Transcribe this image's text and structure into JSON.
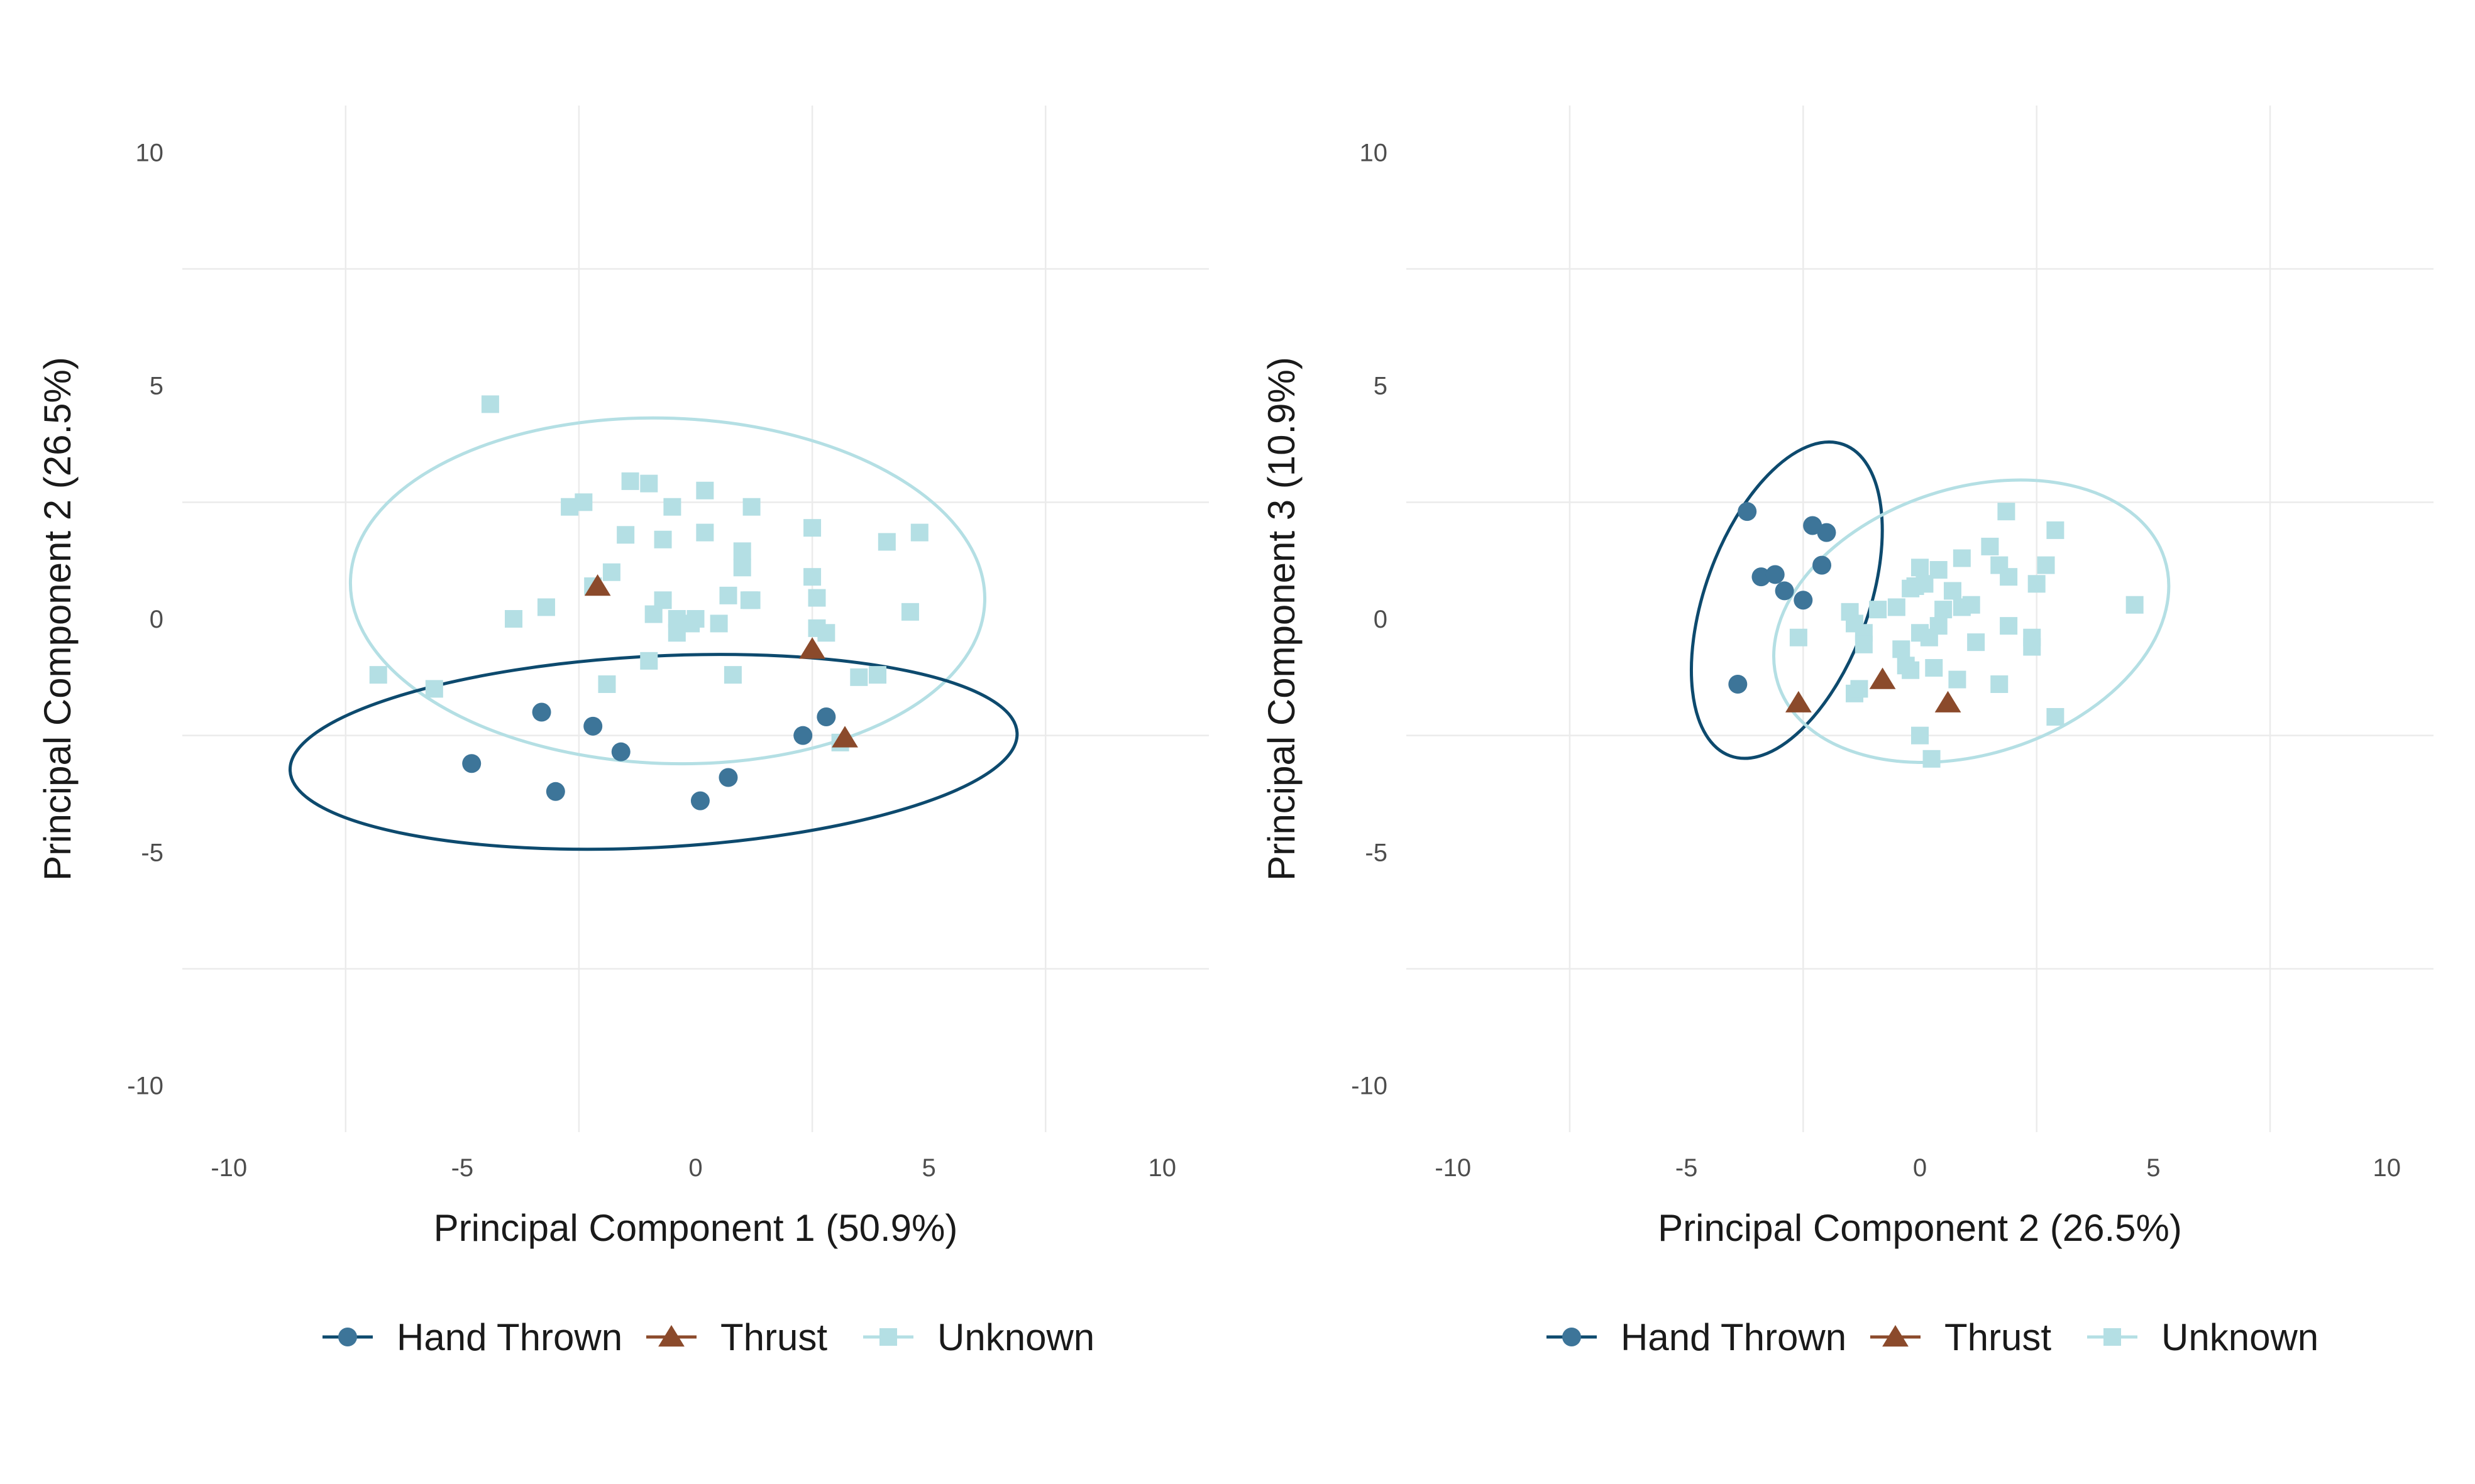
{
  "chart_data": [
    {
      "type": "scatter",
      "xlabel": "Principal Component 1 (50.9%)",
      "ylabel": "Principal Component 2 (26.5%)",
      "xlim": [
        -11,
        11
      ],
      "ylim": [
        -11,
        11
      ],
      "xticks": [
        -10,
        -5,
        0,
        5,
        10
      ],
      "yticks": [
        -10,
        -5,
        0,
        5,
        10
      ],
      "grid": true,
      "legend_position": "bottom",
      "series": [
        {
          "name": "Hand Thrown",
          "color": "#3d7599",
          "marker": "circle",
          "x": [
            -4.8,
            -3.3,
            -3.0,
            -2.2,
            -1.6,
            0.1,
            0.7,
            2.3,
            2.8
          ],
          "y": [
            -3.1,
            -2.0,
            -3.7,
            -2.3,
            -2.85,
            -3.9,
            -3.4,
            -2.5,
            -2.1
          ]
        },
        {
          "name": "Thrust",
          "color": "#8b4a2b",
          "marker": "triangle",
          "x": [
            -2.1,
            2.5,
            3.2
          ],
          "y": [
            0.7,
            -0.65,
            -2.55
          ]
        },
        {
          "name": "Unknown",
          "color": "#b4dfe4",
          "marker": "square",
          "x": [
            -4.4,
            -6.8,
            -5.6,
            -3.9,
            -3.2,
            -2.7,
            -2.4,
            -2.2,
            -1.8,
            -1.9,
            -1.5,
            -1.4,
            -1.0,
            -0.7,
            -0.9,
            -0.7,
            -0.5,
            -0.4,
            -0.4,
            0.0,
            -0.1,
            0.2,
            0.2,
            0.5,
            0.7,
            0.8,
            1.0,
            1.0,
            1.15,
            1.2,
            1.2,
            2.5,
            2.6,
            2.6,
            2.5,
            2.8,
            3.1,
            3.5,
            3.9,
            4.1,
            4.6,
            4.8,
            -1.0
          ],
          "y": [
            4.6,
            -1.2,
            -1.5,
            0.0,
            0.25,
            2.4,
            2.5,
            0.7,
            1.0,
            -1.4,
            1.8,
            2.95,
            2.9,
            1.7,
            0.1,
            0.4,
            2.4,
            -0.3,
            0.0,
            0.0,
            -0.1,
            2.75,
            1.85,
            -0.1,
            0.5,
            -1.2,
            1.1,
            1.45,
            0.4,
            0.4,
            2.4,
            0.9,
            0.45,
            -0.2,
            1.95,
            -0.3,
            -2.65,
            -1.25,
            -1.2,
            1.65,
            0.15,
            1.85,
            -0.9
          ]
        }
      ],
      "ellipses": [
        {
          "group": "Unknown",
          "color": "#b4dfe4",
          "cx": -0.6,
          "cy": 0.6,
          "rx": 6.8,
          "ry": 3.7,
          "angle_deg": -2
        },
        {
          "group": "Hand Thrown",
          "color": "#0d4a6e",
          "cx": -0.9,
          "cy": -2.85,
          "rx": 7.8,
          "ry": 2.05,
          "angle_deg": 3
        }
      ]
    },
    {
      "type": "scatter",
      "xlabel": "Principal Component 2 (26.5%)",
      "ylabel": "Principal Component 3 (10.9%)",
      "xlim": [
        -11,
        11
      ],
      "ylim": [
        -11,
        11
      ],
      "xticks": [
        -10,
        -5,
        0,
        5,
        10
      ],
      "yticks": [
        -10,
        -5,
        0,
        5,
        10
      ],
      "grid": true,
      "legend_position": "bottom",
      "series": [
        {
          "name": "Hand Thrown",
          "color": "#3d7599",
          "marker": "circle",
          "x": [
            -3.7,
            -3.4,
            -3.1,
            -2.9,
            -2.5,
            -2.3,
            -2.1,
            -2.0,
            -3.9
          ],
          "y": [
            2.3,
            0.9,
            0.95,
            0.6,
            0.4,
            2.0,
            1.15,
            1.85,
            -1.4
          ]
        },
        {
          "name": "Thrust",
          "color": "#8b4a2b",
          "marker": "triangle",
          "x": [
            -2.6,
            -0.8,
            0.6
          ],
          "y": [
            -1.8,
            -1.3,
            -1.8
          ]
        },
        {
          "name": "Unknown",
          "color": "#b4dfe4",
          "marker": "square",
          "x": [
            -2.6,
            -1.5,
            -1.4,
            -1.2,
            -1.2,
            -1.4,
            -1.3,
            -0.9,
            -0.5,
            -0.4,
            -0.3,
            -0.2,
            -0.1,
            0.0,
            0.0,
            0.1,
            0.2,
            0.3,
            0.4,
            0.4,
            0.5,
            0.7,
            0.9,
            0.9,
            1.1,
            1.2,
            1.5,
            1.7,
            1.7,
            1.9,
            1.85,
            1.9,
            2.4,
            2.4,
            2.5,
            2.7,
            2.9,
            2.9,
            4.6,
            0.0,
            0.25,
            -0.2,
            0.8
          ],
          "y": [
            -0.4,
            0.15,
            -0.1,
            -0.3,
            -0.55,
            -1.6,
            -1.5,
            0.2,
            0.25,
            -0.65,
            -1.0,
            0.65,
            0.7,
            1.1,
            -0.3,
            0.75,
            -0.4,
            -1.05,
            -0.15,
            1.05,
            0.2,
            0.6,
            0.25,
            1.3,
            0.3,
            -0.5,
            1.55,
            -1.4,
            1.15,
            0.9,
            2.3,
            -0.15,
            -0.4,
            -0.6,
            0.75,
            1.15,
            1.9,
            -2.1,
            0.3,
            -2.5,
            -3.0,
            -1.1,
            -1.3
          ]
        }
      ],
      "ellipses": [
        {
          "group": "Hand Thrown",
          "color": "#0d4a6e",
          "cx": -2.85,
          "cy": 0.4,
          "rx": 3.55,
          "ry": 1.75,
          "angle_deg": 70
        },
        {
          "group": "Unknown",
          "color": "#b4dfe4",
          "cx": 1.1,
          "cy": -0.05,
          "rx": 4.35,
          "ry": 2.85,
          "angle_deg": 18
        }
      ]
    }
  ]
}
